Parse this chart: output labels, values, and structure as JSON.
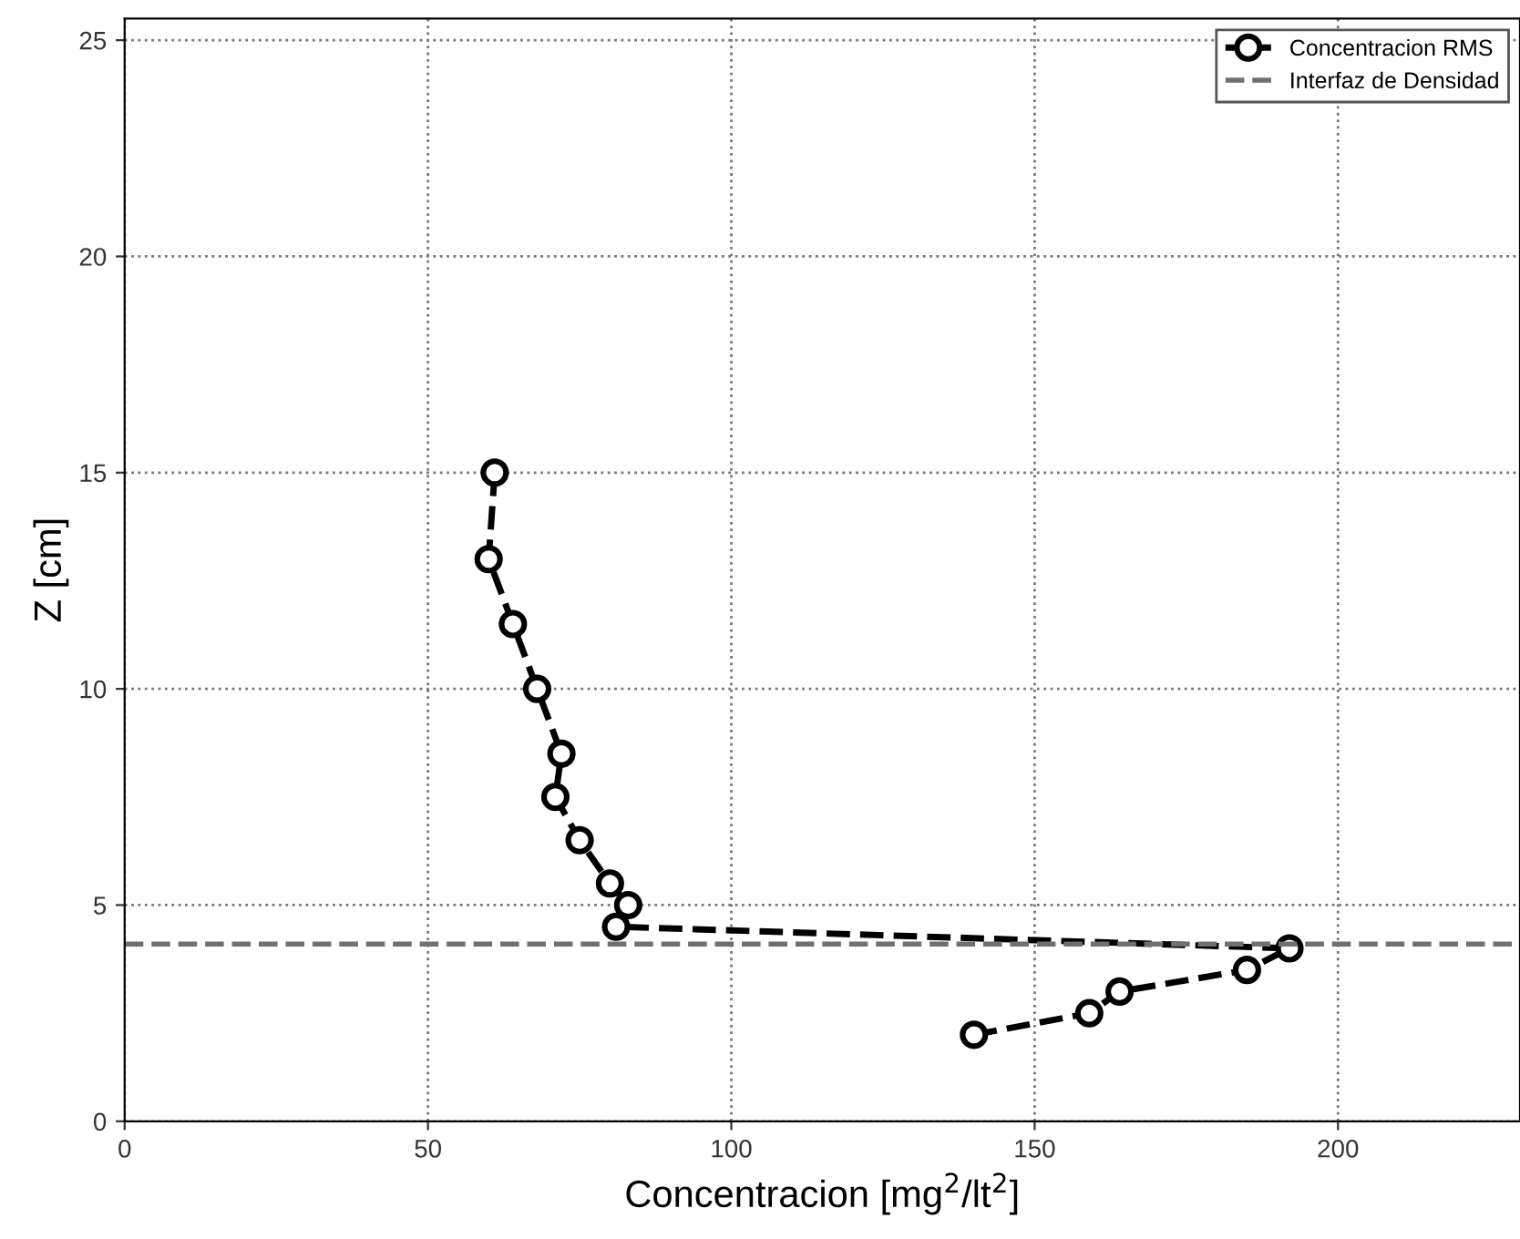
{
  "chart_data": {
    "type": "line",
    "xlabel": "Concentracion [mg$^{2}$/lt$^{2}$]",
    "ylabel": "Z [cm]",
    "x": [
      61,
      60,
      64,
      68,
      72,
      71,
      75,
      80,
      83,
      81,
      192,
      185,
      164,
      159,
      140
    ],
    "series": [
      {
        "name": "Concentracion RMS",
        "color": "#000000",
        "values": [
          15,
          13,
          11.5,
          10,
          8.5,
          7.5,
          6.5,
          5.5,
          5,
          4.5,
          4,
          3.5,
          3,
          2.5,
          2
        ]
      }
    ],
    "marker": "circle",
    "line_style": "dashed",
    "ref_lines": [
      {
        "axis": "y",
        "value": 4.1,
        "label": "Interfaz de Densidad",
        "color": "#707070",
        "line_style": "dashed"
      }
    ],
    "xlim": [
      0,
      230
    ],
    "ylim": [
      0,
      25.5
    ],
    "xticks": [
      0,
      50,
      100,
      150,
      200
    ],
    "yticks": [
      0,
      5,
      10,
      15,
      20,
      25
    ],
    "grid": true,
    "legend": "top right"
  }
}
